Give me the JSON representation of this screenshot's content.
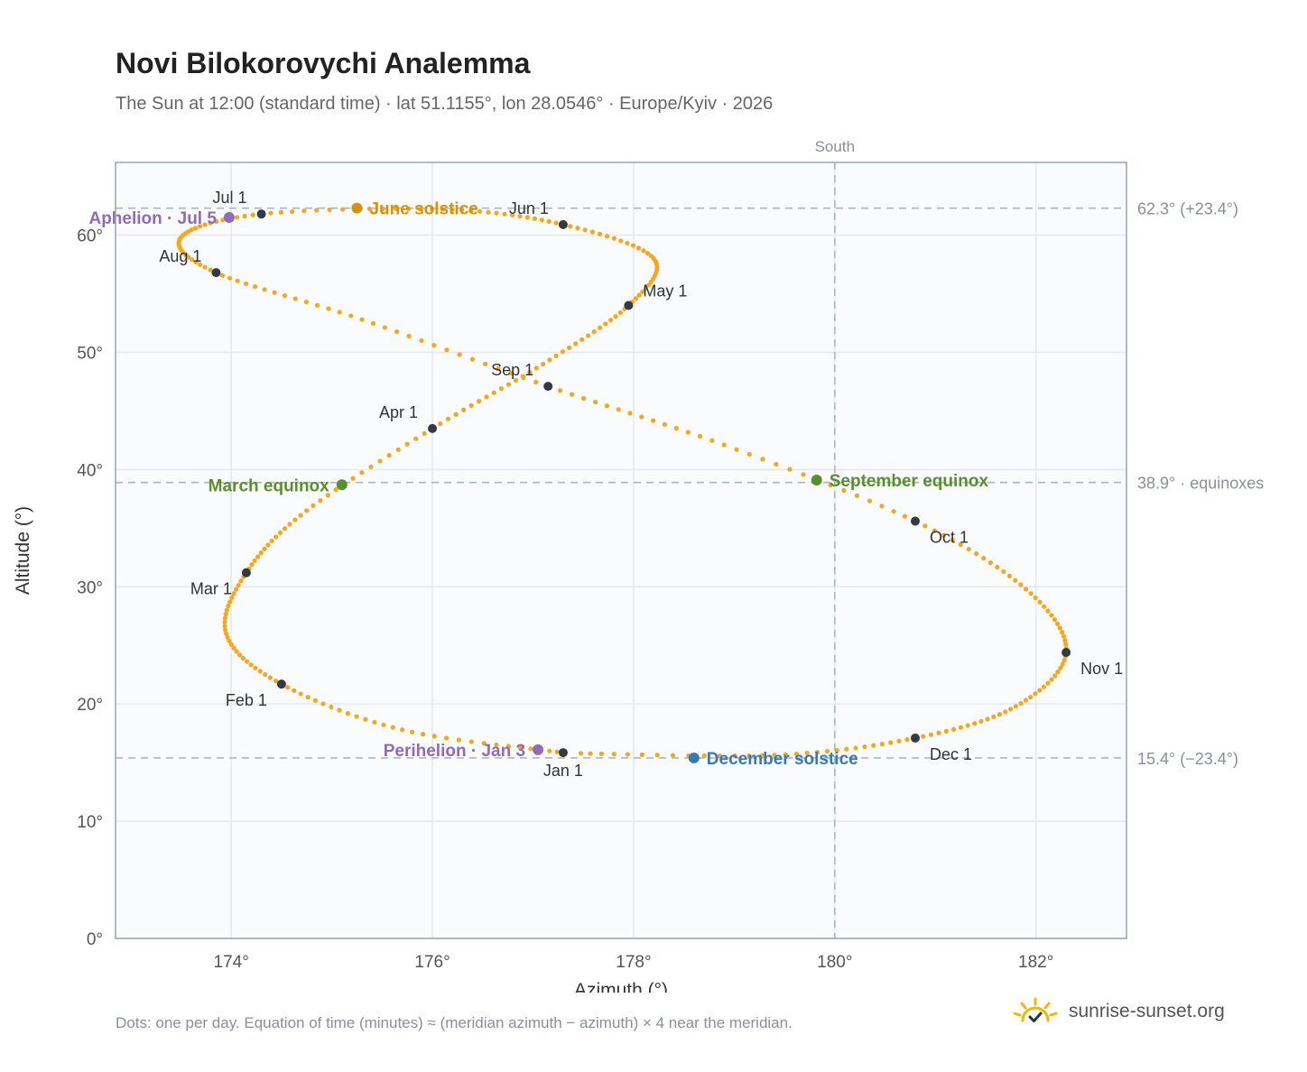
{
  "title": "Novi Bilokorovychi Analemma",
  "subtitle": "The Sun at 12:00 (standard time) · lat 51.1155°, lon 28.0546° · Europe/Kyiv · 2026",
  "footnote": "Dots: one per day. Equation of time (minutes) ≈ (meridian azimuth − azimuth) × 4 near the meridian.",
  "brand": {
    "name": "sunrise-sunset.org",
    "icon": "sun-checkmark-icon"
  },
  "colors": {
    "curve": "#f5a623",
    "month_marker": "#333a44",
    "solstice_june": "#d4940a",
    "solstice_december": "#3a78b5",
    "equinox": "#5a8f2e",
    "apsis": "#8f6bb8",
    "reference_line": "#a9b7c4",
    "plot_bg": "#f9fbfd",
    "grid": "#e3e8ee"
  },
  "chart_data": {
    "type": "scatter",
    "xlabel": "Azimuth (°)",
    "ylabel": "Altitude (°)",
    "xlim": [
      172.85,
      182.9
    ],
    "ylim": [
      0,
      66.2
    ],
    "xticks": [
      174,
      176,
      178,
      180,
      182
    ],
    "xtick_labels": [
      "174°",
      "176°",
      "178°",
      "180°",
      "182°"
    ],
    "yticks": [
      0,
      10,
      20,
      30,
      40,
      50,
      60
    ],
    "ytick_labels": [
      "0°",
      "10°",
      "20°",
      "30°",
      "40°",
      "50°",
      "60°"
    ],
    "grid": true,
    "meridian": {
      "azimuth": 180,
      "label": "South"
    },
    "reference_lines": [
      {
        "altitude": 62.3,
        "label": "62.3° (+23.4°)"
      },
      {
        "altitude": 38.9,
        "label": "38.9° · equinoxes"
      },
      {
        "altitude": 15.4,
        "label": "15.4° (−23.4°)"
      }
    ],
    "daily_path_anchors": [
      {
        "date": "Jan 1",
        "azimuth": 177.3,
        "altitude": 15.85
      },
      {
        "date": "Jan 16",
        "azimuth": 175.7,
        "altitude": 17.8
      },
      {
        "date": "Feb 1",
        "azimuth": 174.5,
        "altitude": 21.7
      },
      {
        "date": "Feb 15",
        "azimuth": 173.95,
        "altitude": 26.0
      },
      {
        "date": "Mar 1",
        "azimuth": 174.15,
        "altitude": 31.2
      },
      {
        "date": "Mar 15",
        "azimuth": 174.75,
        "altitude": 36.5
      },
      {
        "date": "Apr 1",
        "azimuth": 176.0,
        "altitude": 43.5
      },
      {
        "date": "Apr 15",
        "azimuth": 177.1,
        "altitude": 49.0
      },
      {
        "date": "May 1",
        "azimuth": 177.95,
        "altitude": 54.0
      },
      {
        "date": "May 15",
        "azimuth": 178.2,
        "altitude": 58.0
      },
      {
        "date": "Jun 1",
        "azimuth": 177.3,
        "altitude": 60.9
      },
      {
        "date": "Jun 15",
        "azimuth": 176.1,
        "altitude": 62.2
      },
      {
        "date": "Jul 1",
        "azimuth": 174.3,
        "altitude": 61.8
      },
      {
        "date": "Jul 15",
        "azimuth": 173.5,
        "altitude": 59.8
      },
      {
        "date": "Aug 1",
        "azimuth": 173.85,
        "altitude": 56.8
      },
      {
        "date": "Aug 15",
        "azimuth": 175.3,
        "altitude": 52.8
      },
      {
        "date": "Sep 1",
        "azimuth": 177.15,
        "altitude": 47.1
      },
      {
        "date": "Sep 15",
        "azimuth": 178.9,
        "altitude": 42.1
      },
      {
        "date": "Oct 1",
        "azimuth": 180.8,
        "altitude": 35.6
      },
      {
        "date": "Oct 15",
        "azimuth": 181.9,
        "altitude": 29.8
      },
      {
        "date": "Nov 1",
        "azimuth": 182.3,
        "altitude": 24.4
      },
      {
        "date": "Nov 15",
        "azimuth": 181.8,
        "altitude": 19.8
      },
      {
        "date": "Dec 1",
        "azimuth": 180.8,
        "altitude": 17.1
      },
      {
        "date": "Dec 15",
        "azimuth": 179.4,
        "altitude": 15.65
      },
      {
        "date": "Dec 31",
        "azimuth": 177.4,
        "altitude": 15.8
      }
    ],
    "month_markers": [
      {
        "label": "Jan 1",
        "azimuth": 177.3,
        "altitude": 15.85,
        "anchor": "below"
      },
      {
        "label": "Feb 1",
        "azimuth": 174.5,
        "altitude": 21.7,
        "anchor": "below-left"
      },
      {
        "label": "Mar 1",
        "azimuth": 174.15,
        "altitude": 31.2,
        "anchor": "below-left"
      },
      {
        "label": "Apr 1",
        "azimuth": 176.0,
        "altitude": 43.5,
        "anchor": "above-left"
      },
      {
        "label": "May 1",
        "azimuth": 177.95,
        "altitude": 54.0,
        "anchor": "above-right"
      },
      {
        "label": "Jun 1",
        "azimuth": 177.3,
        "altitude": 60.9,
        "anchor": "above-left"
      },
      {
        "label": "Jul 1",
        "azimuth": 174.3,
        "altitude": 61.8,
        "anchor": "above-left"
      },
      {
        "label": "Aug 1",
        "azimuth": 173.85,
        "altitude": 56.8,
        "anchor": "above-left"
      },
      {
        "label": "Sep 1",
        "azimuth": 177.15,
        "altitude": 47.1,
        "anchor": "above-left"
      },
      {
        "label": "Oct 1",
        "azimuth": 180.8,
        "altitude": 35.6,
        "anchor": "below-right"
      },
      {
        "label": "Nov 1",
        "azimuth": 182.3,
        "altitude": 24.4,
        "anchor": "below-right"
      },
      {
        "label": "Dec 1",
        "azimuth": 180.8,
        "altitude": 17.1,
        "anchor": "below-right"
      }
    ],
    "events": [
      {
        "label": "June solstice",
        "azimuth": 175.25,
        "altitude": 62.3,
        "kind": "solstice_june",
        "anchor": "right"
      },
      {
        "label": "December solstice",
        "azimuth": 178.6,
        "altitude": 15.4,
        "kind": "solstice_december",
        "anchor": "right"
      },
      {
        "label": "March equinox",
        "azimuth": 175.1,
        "altitude": 38.7,
        "kind": "equinox",
        "anchor": "left"
      },
      {
        "label": "September equinox",
        "azimuth": 179.82,
        "altitude": 39.1,
        "kind": "equinox",
        "anchor": "right"
      },
      {
        "label": "Aphelion · Jul 5",
        "azimuth": 173.98,
        "altitude": 61.5,
        "kind": "apsis",
        "anchor": "left"
      },
      {
        "label": "Perihelion · Jan 3",
        "azimuth": 177.05,
        "altitude": 16.1,
        "kind": "apsis",
        "anchor": "left"
      }
    ]
  }
}
